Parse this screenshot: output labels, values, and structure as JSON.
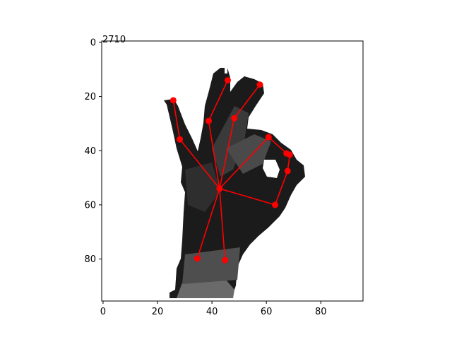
{
  "chart_data": {
    "type": "scatter",
    "title": "2710",
    "xlabel": "",
    "ylabel": "",
    "xlim": [
      -0.5,
      95.5
    ],
    "ylim": [
      95.5,
      -0.5
    ],
    "x_ticks": [
      0,
      20,
      40,
      60,
      80
    ],
    "y_ticks": [
      0,
      20,
      40,
      60,
      80
    ],
    "grid": false,
    "background_image": "grayscale depth map of a hand making an OK gesture",
    "marker_color": "#ff0000",
    "line_color": "#ff0000",
    "joints": [
      {
        "id": "wrist",
        "x": 42.8,
        "y": 54.0
      },
      {
        "id": "thumb_base",
        "x": 63.2,
        "y": 60.0
      },
      {
        "id": "thumb_mid",
        "x": 67.8,
        "y": 47.5
      },
      {
        "id": "thumb_tip",
        "x": 68.6,
        "y": 41.5
      },
      {
        "id": "index_base",
        "x": 60.8,
        "y": 35.0
      },
      {
        "id": "index_tip",
        "x": 67.4,
        "y": 41.0
      },
      {
        "id": "middle_mid",
        "x": 48.2,
        "y": 28.0
      },
      {
        "id": "middle_tip",
        "x": 57.6,
        "y": 15.6
      },
      {
        "id": "ring_mid",
        "x": 38.8,
        "y": 29.0
      },
      {
        "id": "ring_tip",
        "x": 45.8,
        "y": 14.0
      },
      {
        "id": "pinky_mid",
        "x": 28.2,
        "y": 35.8
      },
      {
        "id": "pinky_tip",
        "x": 25.8,
        "y": 21.4
      },
      {
        "id": "palm_low_left",
        "x": 34.6,
        "y": 79.8
      },
      {
        "id": "palm_low_right",
        "x": 44.8,
        "y": 80.4
      }
    ],
    "bones": [
      [
        "wrist",
        "thumb_base"
      ],
      [
        "thumb_base",
        "thumb_mid"
      ],
      [
        "thumb_mid",
        "thumb_tip"
      ],
      [
        "wrist",
        "index_base"
      ],
      [
        "index_base",
        "index_tip"
      ],
      [
        "wrist",
        "middle_mid"
      ],
      [
        "middle_mid",
        "middle_tip"
      ],
      [
        "wrist",
        "ring_mid"
      ],
      [
        "ring_mid",
        "ring_tip"
      ],
      [
        "wrist",
        "pinky_mid"
      ],
      [
        "pinky_mid",
        "pinky_tip"
      ],
      [
        "wrist",
        "palm_low_left"
      ],
      [
        "wrist",
        "palm_low_right"
      ]
    ]
  }
}
